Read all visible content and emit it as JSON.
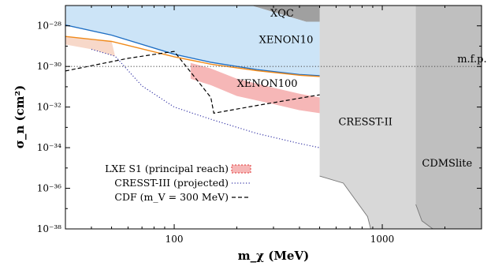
{
  "chart_data": {
    "type": "area",
    "title": "",
    "xlabel": "m_χ (MeV)",
    "ylabel": "σ_n (cm²)",
    "xscale": "log",
    "yscale": "log",
    "xlim": [
      30,
      3000
    ],
    "ylim": [
      1e-38,
      1e-27
    ],
    "grid": false,
    "x_ticks": [
      {
        "value": 100,
        "label": "100"
      },
      {
        "value": 1000,
        "label": "1000"
      }
    ],
    "y_ticks": [
      {
        "value": 1e-28,
        "label": "10⁻²⁸"
      },
      {
        "value": 1e-30,
        "label": "10⁻³⁰"
      },
      {
        "value": 1e-32,
        "label": "10⁻³²"
      },
      {
        "value": 1e-34,
        "label": "10⁻³⁴"
      },
      {
        "value": 1e-36,
        "label": "10⁻³⁶"
      },
      {
        "value": 1e-38,
        "label": "10⁻³⁸"
      }
    ],
    "regions": [
      {
        "name": "XQC",
        "color": "#a0a0a0",
        "boundary": [
          [
            235,
            1e-27
          ],
          [
            430,
            1.6e-28
          ],
          [
            3000,
            1.6e-28
          ],
          [
            3000,
            1e-27
          ]
        ]
      },
      {
        "name": "XENON10",
        "color": "#cce4f7",
        "boundary": [
          [
            30,
            1.1e-28
          ],
          [
            50,
            3.5e-29
          ],
          [
            100,
            4e-30
          ],
          [
            150,
            1.6e-30
          ],
          [
            250,
            7e-31
          ],
          [
            400,
            4e-31
          ],
          [
            500,
            3.5e-31
          ],
          [
            500,
            1.6e-28
          ],
          [
            430,
            1.6e-28
          ],
          [
            235,
            1e-27
          ],
          [
            30,
            1e-27
          ]
        ]
      },
      {
        "name": "LXe orange band",
        "color": "#f7d8c9",
        "boundary": [
          [
            30,
            3e-29
          ],
          [
            50,
            1.7e-29
          ],
          [
            52,
            3.2e-30
          ],
          [
            40,
            7e-30
          ],
          [
            30,
            1.2e-29
          ]
        ]
      },
      {
        "name": "CRESST-II",
        "color": "#d8d8d8",
        "boundary": [
          [
            500,
            1e-27
          ],
          [
            500,
            4e-36
          ],
          [
            650,
            1.8e-36
          ],
          [
            850,
            4e-38
          ],
          [
            880,
            1e-38
          ],
          [
            3000,
            1e-38
          ],
          [
            3000,
            1e-27
          ]
        ]
      },
      {
        "name": "CDMSlite",
        "color": "#bfbfbf",
        "boundary": [
          [
            1450,
            1e-27
          ],
          [
            1450,
            1.6e-37
          ],
          [
            1550,
            2.5e-38
          ],
          [
            1750,
            1e-38
          ],
          [
            3000,
            1e-38
          ],
          [
            3000,
            1e-27
          ]
        ]
      }
    ],
    "lxe_band": {
      "name": "LXE S1 (principal reach)",
      "color": "#f6b7b7",
      "upper": [
        [
          120,
          1.5e-30
        ],
        [
          150,
          8e-31
        ],
        [
          200,
          2.5e-31
        ],
        [
          300,
          9e-32
        ],
        [
          400,
          4.5e-32
        ],
        [
          500,
          3e-32
        ]
      ],
      "lower": [
        [
          500,
          5e-33
        ],
        [
          400,
          7e-33
        ],
        [
          300,
          1.4e-32
        ],
        [
          200,
          3.5e-32
        ],
        [
          150,
          1.2e-31
        ],
        [
          120,
          2.5e-31
        ]
      ]
    },
    "series": [
      {
        "name": "XENON10",
        "color": "#1f6fc4",
        "style": "solid",
        "values": [
          [
            30,
            1.1e-28
          ],
          [
            50,
            3.5e-29
          ],
          [
            100,
            4e-30
          ],
          [
            150,
            1.6e-30
          ],
          [
            250,
            7e-31
          ],
          [
            400,
            4e-31
          ],
          [
            500,
            3.5e-31
          ]
        ]
      },
      {
        "name": "XENON100",
        "color": "#f08a1a",
        "style": "solid",
        "values": [
          [
            30,
            3e-29
          ],
          [
            50,
            1.7e-29
          ],
          [
            100,
            3e-30
          ],
          [
            150,
            1.3e-30
          ],
          [
            250,
            6.2e-31
          ],
          [
            400,
            3.7e-31
          ],
          [
            500,
            3.2e-31
          ]
        ]
      },
      {
        "name": "CRESST-III (projected)",
        "color": "#3a3aa8",
        "style": "dotted",
        "values": [
          [
            40,
            7e-30
          ],
          [
            52,
            3.2e-30
          ],
          [
            70,
            1.1e-31
          ],
          [
            100,
            1e-32
          ],
          [
            150,
            2.5e-33
          ],
          [
            250,
            5e-34
          ],
          [
            400,
            1.6e-34
          ],
          [
            500,
            1e-34
          ]
        ]
      },
      {
        "name": "CDF (m_V = 300 MeV)",
        "color": "#000000",
        "style": "dashed",
        "values": [
          [
            30,
            6e-31
          ],
          [
            60,
            2.5e-30
          ],
          [
            100,
            5.5e-30
          ],
          [
            150,
            3e-32
          ],
          [
            155,
            5e-33
          ],
          [
            250,
            1.2e-32
          ],
          [
            500,
            4e-32
          ]
        ]
      },
      {
        "name": "m.f.p.",
        "color": "#555555",
        "style": "dotted",
        "values": [
          [
            30,
            1e-30
          ],
          [
            3000,
            1e-30
          ]
        ]
      }
    ],
    "region_labels": [
      {
        "text": "XQC",
        "x": 330,
        "y": 2.8e-28
      },
      {
        "text": "XENON10",
        "x": 345,
        "y": 1.4e-29
      },
      {
        "text": "XENON100",
        "x": 280,
        "y": 1e-31
      },
      {
        "text": "m.f.p.",
        "x": 2700,
        "y": 1.6e-30
      },
      {
        "text": "CRESST-II",
        "x": 830,
        "y": 1.3e-33
      },
      {
        "text": "CDMSlite",
        "x": 2050,
        "y": 1.2e-35
      }
    ],
    "legend": {
      "position": "lower-left",
      "entries": [
        {
          "label": "LXE S1 (principal reach)",
          "style": "band",
          "color": "#f6b7b7",
          "edge": "#e03a3a"
        },
        {
          "label": "CRESST-III (projected)",
          "style": "dotted",
          "color": "#3a3aa8"
        },
        {
          "label": "CDF (m_V = 300 MeV)",
          "style": "dashed",
          "color": "#000000"
        }
      ]
    }
  }
}
